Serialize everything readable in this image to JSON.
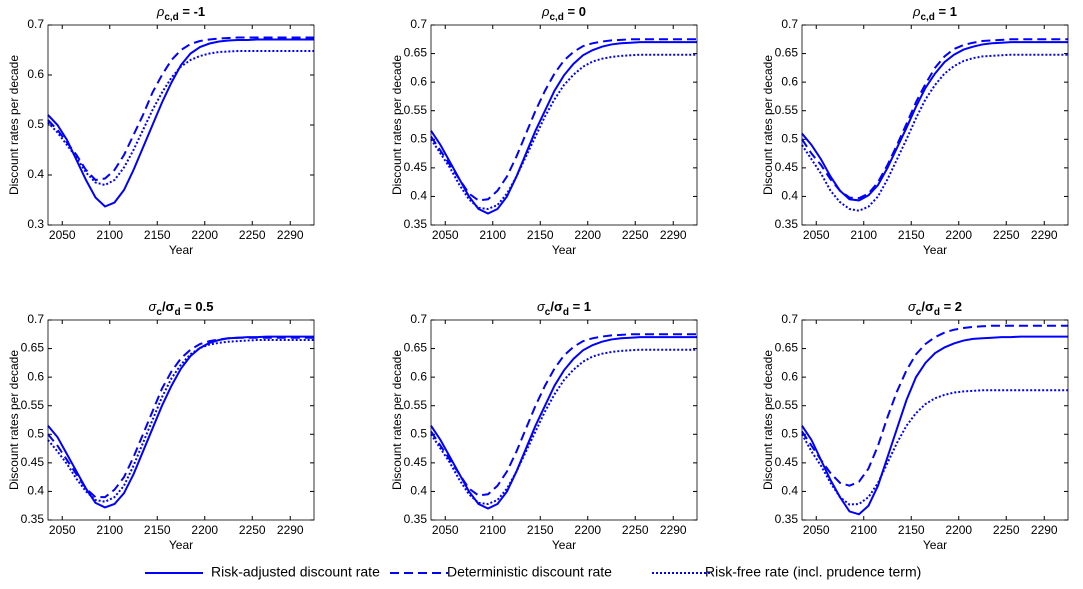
{
  "chart_data": [
    {
      "type": "line",
      "title": [
        "ρ",
        "c,d",
        " = -1"
      ],
      "xlabel": "Year",
      "ylabel": "Discount rates per decade",
      "x": [
        2035,
        2045,
        2055,
        2065,
        2075,
        2085,
        2095,
        2105,
        2115,
        2125,
        2135,
        2145,
        2155,
        2165,
        2175,
        2185,
        2195,
        2205,
        2215,
        2225,
        2235,
        2245,
        2255,
        2265,
        2275,
        2285,
        2295,
        2305,
        2315
      ],
      "xlim": [
        2035,
        2315
      ],
      "xticks": [
        2050,
        2100,
        2150,
        2200,
        2250,
        2290
      ],
      "ylim": [
        0.3,
        0.7
      ],
      "yticks": [
        0.3,
        0.4,
        0.5,
        0.6,
        0.7
      ],
      "series": [
        {
          "name": "Risk-adjusted discount rate",
          "color": "#0000ff",
          "style": "solid",
          "values": [
            0.52,
            0.5,
            0.47,
            0.43,
            0.39,
            0.355,
            0.337,
            0.345,
            0.37,
            0.41,
            0.455,
            0.5,
            0.545,
            0.585,
            0.62,
            0.643,
            0.656,
            0.663,
            0.667,
            0.669,
            0.67,
            0.67,
            0.671,
            0.671,
            0.671,
            0.671,
            0.671,
            0.671,
            0.671
          ]
        },
        {
          "name": "Deterministic discount rate",
          "color": "#0000ff",
          "style": "dashed",
          "values": [
            0.51,
            0.49,
            0.465,
            0.44,
            0.41,
            0.39,
            0.393,
            0.41,
            0.44,
            0.48,
            0.52,
            0.565,
            0.6,
            0.63,
            0.65,
            0.662,
            0.668,
            0.671,
            0.673,
            0.674,
            0.675,
            0.675,
            0.675,
            0.675,
            0.675,
            0.675,
            0.675,
            0.675,
            0.675
          ]
        },
        {
          "name": "Risk-free rate (incl. prudence term)",
          "color": "#0000ff",
          "style": "dotted",
          "values": [
            0.505,
            0.485,
            0.46,
            0.435,
            0.405,
            0.385,
            0.38,
            0.39,
            0.415,
            0.45,
            0.49,
            0.53,
            0.565,
            0.595,
            0.617,
            0.63,
            0.638,
            0.643,
            0.646,
            0.647,
            0.648,
            0.648,
            0.648,
            0.648,
            0.648,
            0.648,
            0.648,
            0.648,
            0.648
          ]
        }
      ]
    },
    {
      "type": "line",
      "title": [
        "ρ",
        "c,d",
        " = 0"
      ],
      "xlabel": "Year",
      "ylabel": "Discount rates per decade",
      "x": [
        2035,
        2045,
        2055,
        2065,
        2075,
        2085,
        2095,
        2105,
        2115,
        2125,
        2135,
        2145,
        2155,
        2165,
        2175,
        2185,
        2195,
        2205,
        2215,
        2225,
        2235,
        2245,
        2255,
        2265,
        2275,
        2285,
        2295,
        2305,
        2315
      ],
      "xlim": [
        2035,
        2315
      ],
      "xticks": [
        2050,
        2100,
        2150,
        2200,
        2250,
        2290
      ],
      "ylim": [
        0.35,
        0.7
      ],
      "yticks": [
        0.35,
        0.4,
        0.45,
        0.5,
        0.55,
        0.6,
        0.65,
        0.7
      ],
      "series": [
        {
          "name": "Risk-adjusted discount rate",
          "color": "#0000ff",
          "style": "solid",
          "values": [
            0.515,
            0.49,
            0.46,
            0.43,
            0.4,
            0.378,
            0.37,
            0.378,
            0.4,
            0.435,
            0.475,
            0.515,
            0.55,
            0.585,
            0.612,
            0.632,
            0.647,
            0.656,
            0.662,
            0.666,
            0.668,
            0.669,
            0.67,
            0.67,
            0.67,
            0.67,
            0.67,
            0.67,
            0.67
          ]
        },
        {
          "name": "Deterministic discount rate",
          "color": "#0000ff",
          "style": "dashed",
          "values": [
            0.505,
            0.48,
            0.455,
            0.43,
            0.405,
            0.393,
            0.395,
            0.41,
            0.435,
            0.47,
            0.51,
            0.55,
            0.585,
            0.615,
            0.638,
            0.653,
            0.663,
            0.668,
            0.671,
            0.673,
            0.674,
            0.675,
            0.675,
            0.675,
            0.675,
            0.675,
            0.675,
            0.675,
            0.675
          ]
        },
        {
          "name": "Risk-free rate (incl. prudence term)",
          "color": "#0000ff",
          "style": "dotted",
          "values": [
            0.5,
            0.475,
            0.45,
            0.42,
            0.395,
            0.38,
            0.378,
            0.385,
            0.405,
            0.435,
            0.47,
            0.505,
            0.54,
            0.57,
            0.595,
            0.613,
            0.627,
            0.636,
            0.641,
            0.644,
            0.646,
            0.647,
            0.648,
            0.648,
            0.648,
            0.648,
            0.648,
            0.648,
            0.648
          ]
        }
      ]
    },
    {
      "type": "line",
      "title": [
        "ρ",
        "c,d",
        " = 1"
      ],
      "xlabel": "Year",
      "ylabel": "Discount rates per decade",
      "x": [
        2035,
        2045,
        2055,
        2065,
        2075,
        2085,
        2095,
        2105,
        2115,
        2125,
        2135,
        2145,
        2155,
        2165,
        2175,
        2185,
        2195,
        2205,
        2215,
        2225,
        2235,
        2245,
        2255,
        2265,
        2275,
        2285,
        2295,
        2305,
        2315
      ],
      "xlim": [
        2035,
        2315
      ],
      "xticks": [
        2050,
        2100,
        2150,
        2200,
        2250,
        2290
      ],
      "ylim": [
        0.35,
        0.7
      ],
      "yticks": [
        0.35,
        0.4,
        0.45,
        0.5,
        0.55,
        0.6,
        0.65,
        0.7
      ],
      "series": [
        {
          "name": "Risk-adjusted discount rate",
          "color": "#0000ff",
          "style": "solid",
          "values": [
            0.51,
            0.49,
            0.465,
            0.435,
            0.41,
            0.395,
            0.393,
            0.402,
            0.42,
            0.45,
            0.485,
            0.52,
            0.557,
            0.59,
            0.615,
            0.635,
            0.648,
            0.657,
            0.662,
            0.666,
            0.668,
            0.669,
            0.67,
            0.67,
            0.67,
            0.67,
            0.67,
            0.67,
            0.67
          ]
        },
        {
          "name": "Deterministic discount rate",
          "color": "#0000ff",
          "style": "dashed",
          "values": [
            0.5,
            0.475,
            0.455,
            0.43,
            0.41,
            0.398,
            0.397,
            0.405,
            0.425,
            0.455,
            0.49,
            0.527,
            0.565,
            0.597,
            0.625,
            0.645,
            0.658,
            0.665,
            0.669,
            0.672,
            0.673,
            0.674,
            0.675,
            0.675,
            0.675,
            0.675,
            0.675,
            0.675,
            0.675
          ]
        },
        {
          "name": "Risk-free rate (incl. prudence term)",
          "color": "#0000ff",
          "style": "dotted",
          "values": [
            0.49,
            0.465,
            0.44,
            0.41,
            0.39,
            0.378,
            0.375,
            0.382,
            0.4,
            0.43,
            0.465,
            0.5,
            0.537,
            0.57,
            0.595,
            0.615,
            0.628,
            0.637,
            0.642,
            0.645,
            0.646,
            0.647,
            0.648,
            0.648,
            0.648,
            0.648,
            0.648,
            0.648,
            0.648
          ]
        }
      ]
    },
    {
      "type": "line",
      "title": [
        "σ",
        "c",
        "/σ",
        "d",
        " = 0.5"
      ],
      "xlabel": "Year",
      "ylabel": "Discount rates per decade",
      "x": [
        2035,
        2045,
        2055,
        2065,
        2075,
        2085,
        2095,
        2105,
        2115,
        2125,
        2135,
        2145,
        2155,
        2165,
        2175,
        2185,
        2195,
        2205,
        2215,
        2225,
        2235,
        2245,
        2255,
        2265,
        2275,
        2285,
        2295,
        2305,
        2315
      ],
      "xlim": [
        2035,
        2315
      ],
      "xticks": [
        2050,
        2100,
        2150,
        2200,
        2250,
        2290
      ],
      "ylim": [
        0.35,
        0.7
      ],
      "yticks": [
        0.35,
        0.4,
        0.45,
        0.5,
        0.55,
        0.6,
        0.65,
        0.7
      ],
      "series": [
        {
          "name": "Risk-adjusted discount rate",
          "color": "#0000ff",
          "style": "solid",
          "values": [
            0.515,
            0.495,
            0.465,
            0.435,
            0.405,
            0.38,
            0.372,
            0.378,
            0.397,
            0.43,
            0.47,
            0.51,
            0.55,
            0.585,
            0.615,
            0.637,
            0.651,
            0.66,
            0.665,
            0.668,
            0.669,
            0.67,
            0.67,
            0.671,
            0.671,
            0.671,
            0.671,
            0.671,
            0.671
          ]
        },
        {
          "name": "Deterministic discount rate",
          "color": "#0000ff",
          "style": "dashed",
          "values": [
            0.5,
            0.48,
            0.455,
            0.43,
            0.405,
            0.39,
            0.39,
            0.403,
            0.425,
            0.46,
            0.5,
            0.54,
            0.58,
            0.61,
            0.633,
            0.648,
            0.658,
            0.663,
            0.666,
            0.668,
            0.669,
            0.669,
            0.669,
            0.669,
            0.669,
            0.669,
            0.669,
            0.669,
            0.669
          ]
        },
        {
          "name": "Risk-free rate (incl. prudence term)",
          "color": "#0000ff",
          "style": "dotted",
          "values": [
            0.49,
            0.47,
            0.448,
            0.422,
            0.4,
            0.385,
            0.382,
            0.39,
            0.41,
            0.445,
            0.485,
            0.525,
            0.565,
            0.598,
            0.622,
            0.64,
            0.651,
            0.657,
            0.66,
            0.662,
            0.663,
            0.664,
            0.665,
            0.665,
            0.665,
            0.665,
            0.665,
            0.665,
            0.665
          ]
        }
      ]
    },
    {
      "type": "line",
      "title": [
        "σ",
        "c",
        "/σ",
        "d",
        " = 1"
      ],
      "xlabel": "Year",
      "ylabel": "Discount rates per decade",
      "x": [
        2035,
        2045,
        2055,
        2065,
        2075,
        2085,
        2095,
        2105,
        2115,
        2125,
        2135,
        2145,
        2155,
        2165,
        2175,
        2185,
        2195,
        2205,
        2215,
        2225,
        2235,
        2245,
        2255,
        2265,
        2275,
        2285,
        2295,
        2305,
        2315
      ],
      "xlim": [
        2035,
        2315
      ],
      "xticks": [
        2050,
        2100,
        2150,
        2200,
        2250,
        2290
      ],
      "ylim": [
        0.35,
        0.7
      ],
      "yticks": [
        0.35,
        0.4,
        0.45,
        0.5,
        0.55,
        0.6,
        0.65,
        0.7
      ],
      "series": [
        {
          "name": "Risk-adjusted discount rate",
          "color": "#0000ff",
          "style": "solid",
          "values": [
            0.515,
            0.49,
            0.46,
            0.43,
            0.4,
            0.378,
            0.37,
            0.378,
            0.4,
            0.435,
            0.475,
            0.515,
            0.55,
            0.585,
            0.612,
            0.632,
            0.647,
            0.656,
            0.662,
            0.666,
            0.668,
            0.669,
            0.67,
            0.67,
            0.67,
            0.67,
            0.67,
            0.67,
            0.67
          ]
        },
        {
          "name": "Deterministic discount rate",
          "color": "#0000ff",
          "style": "dashed",
          "values": [
            0.505,
            0.48,
            0.455,
            0.43,
            0.405,
            0.393,
            0.395,
            0.41,
            0.435,
            0.47,
            0.51,
            0.55,
            0.585,
            0.615,
            0.638,
            0.653,
            0.663,
            0.668,
            0.671,
            0.673,
            0.674,
            0.675,
            0.675,
            0.675,
            0.675,
            0.675,
            0.675,
            0.675,
            0.675
          ]
        },
        {
          "name": "Risk-free rate (incl. prudence term)",
          "color": "#0000ff",
          "style": "dotted",
          "values": [
            0.5,
            0.475,
            0.45,
            0.42,
            0.395,
            0.38,
            0.378,
            0.385,
            0.405,
            0.435,
            0.47,
            0.505,
            0.54,
            0.57,
            0.595,
            0.613,
            0.627,
            0.636,
            0.641,
            0.644,
            0.646,
            0.647,
            0.648,
            0.648,
            0.648,
            0.648,
            0.648,
            0.648,
            0.648
          ]
        }
      ]
    },
    {
      "type": "line",
      "title": [
        "σ",
        "c",
        "/σ",
        "d",
        " = 2"
      ],
      "xlabel": "Year",
      "ylabel": "Discount rates per decade",
      "x": [
        2035,
        2045,
        2055,
        2065,
        2075,
        2085,
        2095,
        2105,
        2115,
        2125,
        2135,
        2145,
        2155,
        2165,
        2175,
        2185,
        2195,
        2205,
        2215,
        2225,
        2235,
        2245,
        2255,
        2265,
        2275,
        2285,
        2295,
        2305,
        2315
      ],
      "xlim": [
        2035,
        2315
      ],
      "xticks": [
        2050,
        2100,
        2150,
        2200,
        2250,
        2290
      ],
      "ylim": [
        0.35,
        0.7
      ],
      "yticks": [
        0.35,
        0.4,
        0.45,
        0.5,
        0.55,
        0.6,
        0.65,
        0.7
      ],
      "series": [
        {
          "name": "Risk-adjusted discount rate",
          "color": "#0000ff",
          "style": "solid",
          "values": [
            0.515,
            0.49,
            0.455,
            0.42,
            0.39,
            0.365,
            0.36,
            0.375,
            0.41,
            0.46,
            0.51,
            0.56,
            0.6,
            0.625,
            0.642,
            0.652,
            0.659,
            0.664,
            0.667,
            0.668,
            0.669,
            0.67,
            0.67,
            0.671,
            0.671,
            0.671,
            0.671,
            0.671,
            0.671
          ]
        },
        {
          "name": "Deterministic discount rate",
          "color": "#0000ff",
          "style": "dashed",
          "values": [
            0.505,
            0.48,
            0.455,
            0.432,
            0.415,
            0.41,
            0.417,
            0.44,
            0.48,
            0.53,
            0.575,
            0.612,
            0.64,
            0.658,
            0.67,
            0.678,
            0.683,
            0.686,
            0.688,
            0.689,
            0.69,
            0.69,
            0.69,
            0.69,
            0.69,
            0.69,
            0.69,
            0.69,
            0.69
          ]
        },
        {
          "name": "Risk-free rate (incl. prudence term)",
          "color": "#0000ff",
          "style": "dotted",
          "values": [
            0.5,
            0.47,
            0.445,
            0.415,
            0.39,
            0.377,
            0.378,
            0.39,
            0.415,
            0.45,
            0.485,
            0.515,
            0.537,
            0.553,
            0.563,
            0.569,
            0.573,
            0.575,
            0.576,
            0.577,
            0.577,
            0.577,
            0.577,
            0.577,
            0.577,
            0.577,
            0.577,
            0.577,
            0.577
          ]
        }
      ]
    }
  ]
}
